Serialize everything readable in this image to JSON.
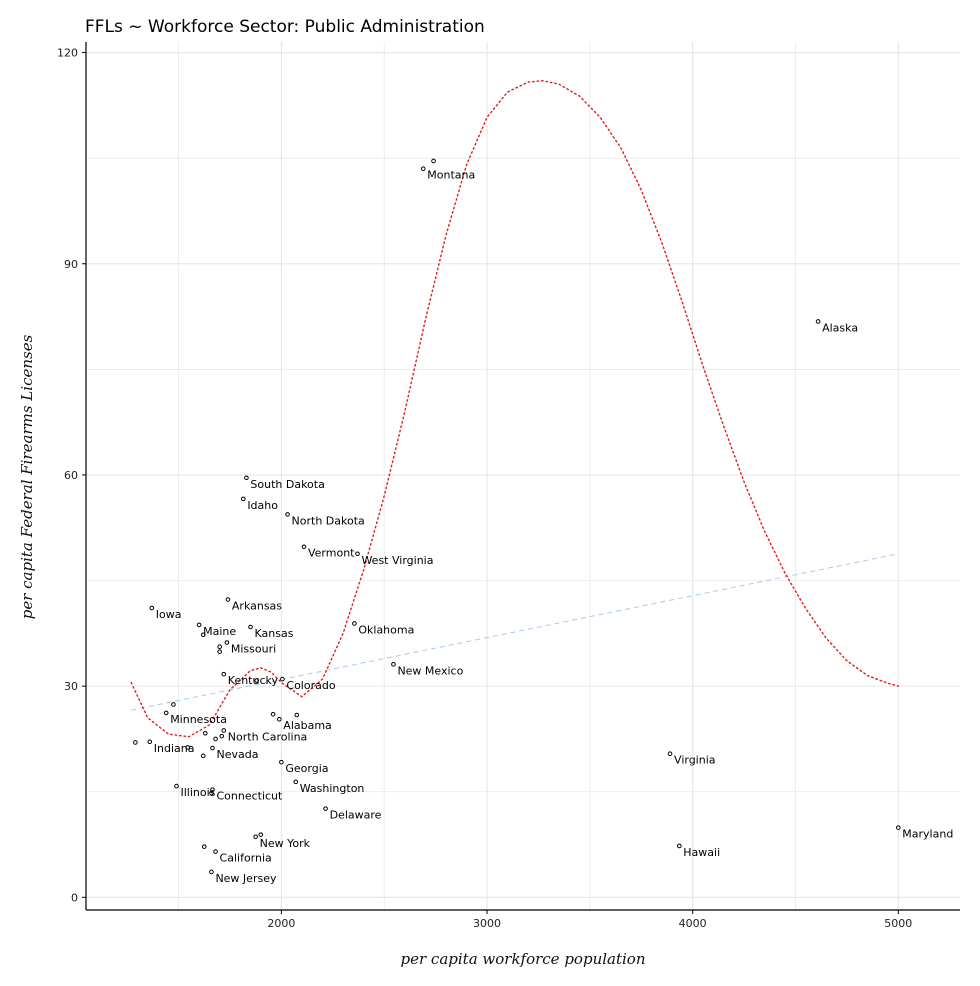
{
  "chart_data": {
    "type": "scatter",
    "title": "FFLs ~ Workforce Sector: Public Administration",
    "xlabel": "per capita workforce population",
    "ylabel": "per capita Federal Firearms Licenses",
    "xlim": [
      1050,
      5300
    ],
    "ylim": [
      -1.8,
      121.5
    ],
    "xticks": [
      2000,
      3000,
      4000,
      5000
    ],
    "yticks": [
      0,
      30,
      60,
      90,
      120
    ],
    "grid": true,
    "colors": {
      "points": "#000000",
      "linear_fit": "#a8c8ec",
      "poly_fit": "#e41a1c",
      "grid": "#e6e6e6",
      "axis": "#000000"
    },
    "points": [
      {
        "label": "Montana",
        "x": 2690,
        "y": 103.5
      },
      {
        "label": "",
        "x": 2740,
        "y": 104.6
      },
      {
        "label": "Alaska",
        "x": 4610,
        "y": 81.8
      },
      {
        "label": "South Dakota",
        "x": 1830,
        "y": 59.6
      },
      {
        "label": "Idaho",
        "x": 1815,
        "y": 56.6
      },
      {
        "label": "North Dakota",
        "x": 2030,
        "y": 54.4
      },
      {
        "label": "Vermont",
        "x": 2110,
        "y": 49.8
      },
      {
        "label": "West Virginia",
        "x": 2370,
        "y": 48.8
      },
      {
        "label": "Arkansas",
        "x": 1740,
        "y": 42.3
      },
      {
        "label": "Iowa",
        "x": 1370,
        "y": 41.1
      },
      {
        "label": "Maine",
        "x": 1600,
        "y": 38.7
      },
      {
        "label": "",
        "x": 1620,
        "y": 37.3
      },
      {
        "label": "Kansas",
        "x": 1850,
        "y": 38.4
      },
      {
        "label": "Oklahoma",
        "x": 2355,
        "y": 38.9
      },
      {
        "label": "Missouri",
        "x": 1735,
        "y": 36.2
      },
      {
        "label": "",
        "x": 1700,
        "y": 35.6
      },
      {
        "label": "",
        "x": 1700,
        "y": 34.9
      },
      {
        "label": "New Mexico",
        "x": 2545,
        "y": 33.1
      },
      {
        "label": "Kentucky",
        "x": 1720,
        "y": 31.7
      },
      {
        "label": "Colorado",
        "x": 2005,
        "y": 31.0
      },
      {
        "label": "",
        "x": 1880,
        "y": 30.8
      },
      {
        "label": "",
        "x": 1475,
        "y": 27.4
      },
      {
        "label": "Minnesota",
        "x": 1440,
        "y": 26.2
      },
      {
        "label": "",
        "x": 1960,
        "y": 26.0
      },
      {
        "label": "",
        "x": 2075,
        "y": 25.9
      },
      {
        "label": "Alabama",
        "x": 1990,
        "y": 25.3
      },
      {
        "label": "North Carolina",
        "x": 1720,
        "y": 23.7
      },
      {
        "label": "",
        "x": 1630,
        "y": 23.3
      },
      {
        "label": "",
        "x": 1710,
        "y": 22.9
      },
      {
        "label": "",
        "x": 1680,
        "y": 22.5
      },
      {
        "label": "",
        "x": 1290,
        "y": 22.0
      },
      {
        "label": "Indiana",
        "x": 1360,
        "y": 22.1
      },
      {
        "label": "",
        "x": 1545,
        "y": 21.3
      },
      {
        "label": "Nevada",
        "x": 1665,
        "y": 21.2
      },
      {
        "label": "",
        "x": 1620,
        "y": 20.1
      },
      {
        "label": "Virginia",
        "x": 3890,
        "y": 20.4
      },
      {
        "label": "Georgia",
        "x": 2000,
        "y": 19.2
      },
      {
        "label": "Washington",
        "x": 2070,
        "y": 16.4
      },
      {
        "label": "Illinois",
        "x": 1490,
        "y": 15.8
      },
      {
        "label": "Connecticut",
        "x": 1665,
        "y": 15.3
      },
      {
        "label": "",
        "x": 1660,
        "y": 14.8
      },
      {
        "label": "Delaware",
        "x": 2215,
        "y": 12.6
      },
      {
        "label": "Maryland",
        "x": 5000,
        "y": 9.9
      },
      {
        "label": "New York",
        "x": 1875,
        "y": 8.6
      },
      {
        "label": "",
        "x": 1900,
        "y": 8.9
      },
      {
        "label": "Hawaii",
        "x": 3935,
        "y": 7.3
      },
      {
        "label": "",
        "x": 1625,
        "y": 7.2
      },
      {
        "label": "California",
        "x": 1680,
        "y": 6.5
      },
      {
        "label": "New Jersey",
        "x": 1660,
        "y": 3.6
      }
    ],
    "linear_fit": {
      "style": "dashed",
      "x": [
        1270,
        5000
      ],
      "y": [
        26.6,
        48.8
      ]
    },
    "poly_fit": {
      "style": "dotted",
      "x": [
        1270,
        1350,
        1450,
        1550,
        1650,
        1750,
        1850,
        1900,
        1950,
        2000,
        2100,
        2200,
        2300,
        2400,
        2500,
        2600,
        2700,
        2800,
        2900,
        3000,
        3100,
        3200,
        3270,
        3350,
        3450,
        3550,
        3650,
        3750,
        3850,
        3950,
        4050,
        4150,
        4250,
        4350,
        4450,
        4550,
        4650,
        4750,
        4850,
        4950,
        5000
      ],
      "y": [
        30.5,
        25.5,
        23.2,
        22.8,
        24.5,
        29.5,
        32.2,
        32.6,
        32.0,
        30.5,
        28.5,
        31.0,
        37.5,
        46.5,
        57.0,
        69.0,
        82.0,
        94.0,
        104.0,
        110.8,
        114.4,
        115.8,
        116.0,
        115.5,
        113.8,
        110.8,
        106.5,
        100.5,
        93.0,
        84.5,
        75.5,
        67.0,
        59.0,
        52.0,
        46.0,
        41.0,
        36.8,
        33.6,
        31.5,
        30.4,
        30.0
      ]
    }
  }
}
